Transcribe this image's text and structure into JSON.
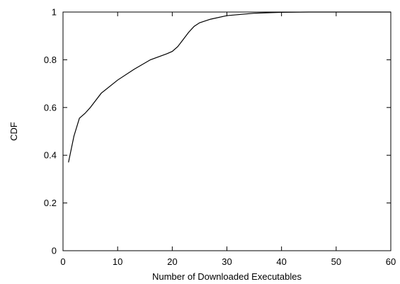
{
  "chart_data": {
    "type": "line",
    "xlabel": "Number of Downloaded Executables",
    "ylabel": "CDF",
    "xlim": [
      0,
      60
    ],
    "ylim": [
      0,
      1
    ],
    "xticks": [
      0,
      10,
      20,
      30,
      40,
      50,
      60
    ],
    "yticks": [
      0,
      0.2,
      0.4,
      0.6,
      0.8,
      1
    ],
    "xtick_labels": [
      "0",
      "10",
      "20",
      "30",
      "40",
      "50",
      "60"
    ],
    "ytick_labels": [
      "0",
      "0.2",
      "0.4",
      "0.6",
      "0.8",
      "1"
    ],
    "grid": false,
    "legend": "none",
    "line_color": "#000000",
    "series": [
      {
        "x": [
          1,
          2,
          3,
          4,
          5,
          7,
          10,
          13,
          16,
          19,
          20,
          21,
          22,
          23,
          24,
          25,
          27,
          30,
          35,
          40,
          45,
          50,
          60
        ],
        "y": [
          0.37,
          0.48,
          0.555,
          0.575,
          0.6,
          0.66,
          0.715,
          0.76,
          0.8,
          0.825,
          0.835,
          0.855,
          0.885,
          0.915,
          0.94,
          0.955,
          0.97,
          0.985,
          0.995,
          0.999,
          1.0,
          1.0,
          1.0
        ]
      }
    ]
  }
}
